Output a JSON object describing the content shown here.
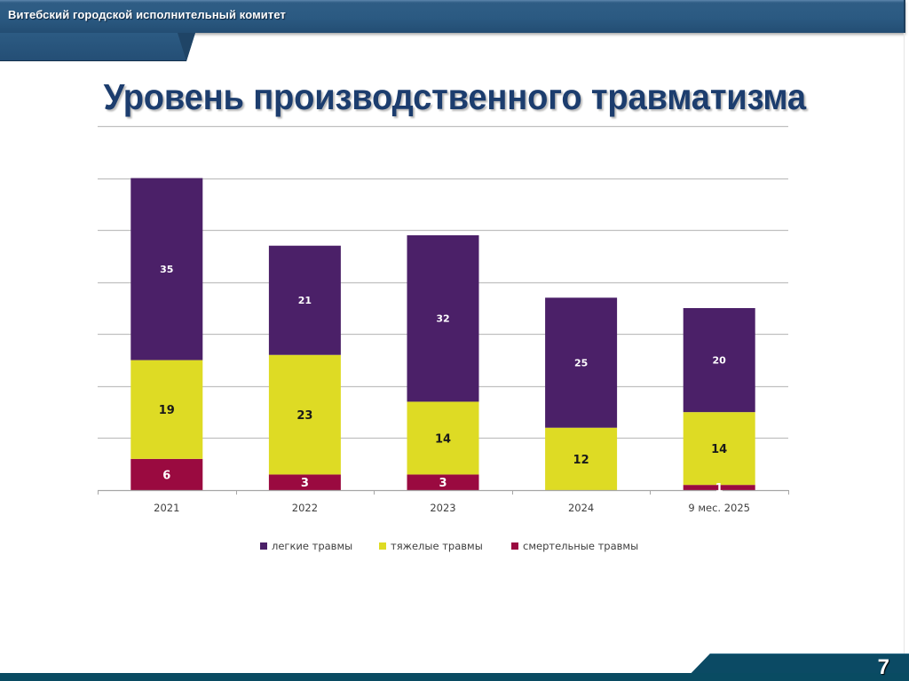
{
  "header": {
    "org_name": "Витебский городской исполнительный комитет"
  },
  "slide": {
    "title": "Уровень производственного травматизма",
    "page_number": "7"
  },
  "colors": {
    "light": "#4b2068",
    "severe": "#dedb24",
    "fatal": "#9a0a40",
    "header_bg": "#2b5a82",
    "title": "#1c3d6e",
    "footer_bg": "#094b62"
  },
  "chart_data": {
    "type": "bar",
    "stacked": true,
    "title": "",
    "xlabel": "",
    "ylabel": "",
    "ylim": [
      0,
      70
    ],
    "grid": true,
    "gridline_step": 10,
    "legend_position": "bottom",
    "categories": [
      "2021",
      "2022",
      "2023",
      "2024",
      "9 мес. 2025"
    ],
    "series": [
      {
        "name": "смертельные травмы",
        "color": "#9a0a40",
        "values": [
          6,
          3,
          3,
          0,
          1
        ],
        "labels": [
          "6",
          "3",
          "3",
          "",
          "1"
        ]
      },
      {
        "name": "тяжелые травмы",
        "color": "#dedb24",
        "values": [
          19,
          23,
          14,
          12,
          14
        ],
        "labels": [
          "19",
          "23",
          "14",
          "12",
          "14"
        ]
      },
      {
        "name": "легкие травмы",
        "color": "#4b2068",
        "values": [
          35,
          21,
          32,
          25,
          20
        ],
        "labels": [
          "35",
          "21",
          "32",
          "25",
          "20"
        ]
      }
    ],
    "legend": [
      "легкие травмы",
      "тяжелые травмы",
      "смертельные травмы"
    ]
  }
}
